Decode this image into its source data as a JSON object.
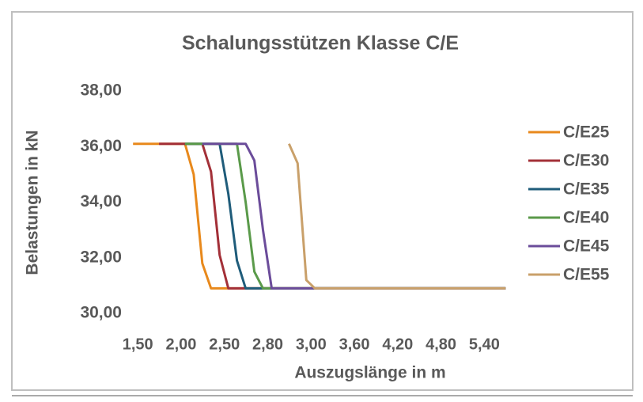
{
  "chart_data": {
    "type": "line",
    "title": "Schalungsstützen Klasse C/E",
    "x_label": "Auszugslänge in m",
    "y_label": "Belastungen in kN",
    "categories": [
      "1,50",
      null,
      null,
      null,
      null,
      "2,00",
      null,
      null,
      null,
      null,
      "2,50",
      null,
      null,
      null,
      null,
      "2,80",
      null,
      null,
      null,
      null,
      "3,00",
      null,
      null,
      null,
      null,
      "3,60",
      null,
      null,
      null,
      null,
      "4,20",
      null,
      null,
      null,
      null,
      "4,80",
      null,
      null,
      null,
      null,
      "5,40",
      null,
      null,
      null
    ],
    "ylim": [
      30,
      38
    ],
    "yticks": [
      {
        "value": 30,
        "label": "30,00"
      },
      {
        "value": 32,
        "label": "32,00"
      },
      {
        "value": 34,
        "label": "34,00"
      },
      {
        "value": 36,
        "label": "36,00"
      },
      {
        "value": 38,
        "label": "38,00"
      }
    ],
    "legend": "right",
    "series": [
      {
        "name": "C/E25",
        "color": "#e8891c",
        "values": [
          36.1,
          36.1,
          36.1,
          36.1,
          36.1,
          36.1,
          36.1,
          35.0,
          31.8,
          30.9,
          30.9,
          30.9,
          30.9,
          30.9,
          30.9,
          30.9,
          30.9,
          30.9,
          30.9,
          30.9,
          30.9,
          30.9,
          30.9,
          30.9,
          30.9,
          30.9,
          30.9,
          30.9,
          30.9,
          30.9,
          30.9,
          30.9,
          30.9,
          30.9,
          30.9,
          30.9,
          30.9,
          30.9,
          30.9,
          30.9,
          30.9,
          30.9,
          30.9,
          30.9
        ]
      },
      {
        "name": "C/E30",
        "color": "#a33038",
        "values": [
          null,
          null,
          null,
          36.1,
          36.1,
          36.1,
          36.1,
          36.1,
          36.1,
          35.1,
          32.1,
          30.9,
          30.9,
          30.9,
          30.9,
          30.9,
          30.9,
          30.9,
          30.9,
          30.9,
          30.9,
          30.9,
          30.9,
          30.9,
          30.9,
          30.9,
          30.9,
          30.9,
          30.9,
          30.9,
          30.9,
          30.9,
          30.9,
          30.9,
          30.9,
          30.9,
          30.9,
          30.9,
          30.9,
          30.9,
          30.9,
          30.9,
          30.9,
          30.9
        ]
      },
      {
        "name": "C/E35",
        "color": "#1f5c7a",
        "values": [
          null,
          null,
          null,
          null,
          null,
          null,
          36.1,
          36.1,
          36.1,
          36.1,
          36.1,
          34.3,
          31.9,
          30.9,
          30.9,
          30.9,
          30.9,
          30.9,
          30.9,
          30.9,
          30.9,
          30.9,
          30.9,
          30.9,
          30.9,
          30.9,
          30.9,
          30.9,
          30.9,
          30.9,
          30.9,
          30.9,
          30.9,
          30.9,
          30.9,
          30.9,
          30.9,
          30.9,
          30.9,
          30.9,
          30.9,
          30.9,
          30.9,
          30.9
        ]
      },
      {
        "name": "C/E40",
        "color": "#5a9a4a",
        "values": [
          null,
          null,
          null,
          null,
          null,
          null,
          36.1,
          36.1,
          36.1,
          36.1,
          36.1,
          36.1,
          36.1,
          34.0,
          31.5,
          30.9,
          30.9,
          30.9,
          30.9,
          30.9,
          30.9,
          30.9,
          30.9,
          30.9,
          30.9,
          30.9,
          30.9,
          30.9,
          30.9,
          30.9,
          30.9,
          30.9,
          30.9,
          30.9,
          30.9,
          30.9,
          30.9,
          30.9,
          30.9,
          30.9,
          30.9,
          30.9,
          30.9,
          30.9
        ]
      },
      {
        "name": "C/E45",
        "color": "#6b4c9a",
        "values": [
          null,
          null,
          null,
          null,
          null,
          null,
          null,
          null,
          36.1,
          36.1,
          36.1,
          36.1,
          36.1,
          36.1,
          35.5,
          33.0,
          30.9,
          30.9,
          30.9,
          30.9,
          30.9,
          30.9,
          30.9,
          30.9,
          30.9,
          30.9,
          30.9,
          30.9,
          30.9,
          30.9,
          30.9,
          30.9,
          30.9,
          30.9,
          30.9,
          30.9,
          30.9,
          30.9,
          30.9,
          30.9,
          30.9,
          30.9,
          30.9,
          30.9
        ]
      },
      {
        "name": "C/E55",
        "color": "#c9a06a",
        "values": [
          null,
          null,
          null,
          null,
          null,
          null,
          null,
          null,
          null,
          null,
          null,
          null,
          null,
          null,
          null,
          null,
          null,
          null,
          36.1,
          35.4,
          31.2,
          30.9,
          30.9,
          30.9,
          30.9,
          30.9,
          30.9,
          30.9,
          30.9,
          30.9,
          30.9,
          30.9,
          30.9,
          30.9,
          30.9,
          30.9,
          30.9,
          30.9,
          30.9,
          30.9,
          30.9,
          30.9,
          30.9,
          30.9
        ]
      }
    ]
  }
}
